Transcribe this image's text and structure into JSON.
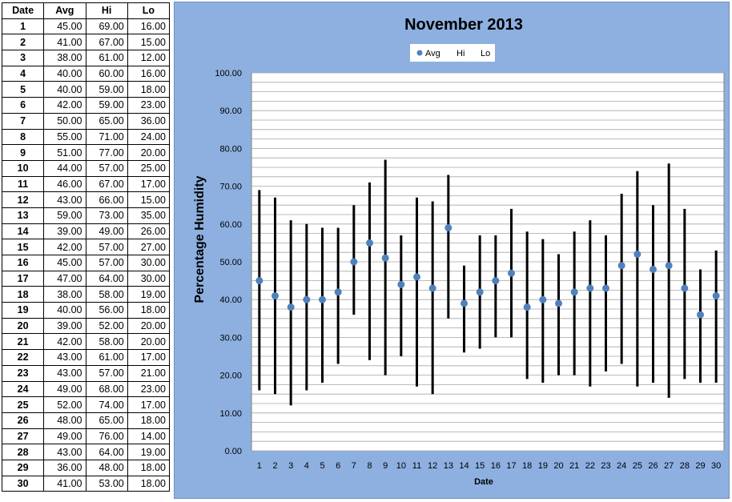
{
  "table": {
    "headers": [
      "Date",
      "Avg",
      "Hi",
      "Lo"
    ],
    "rows": [
      [
        "1",
        "45.00",
        "69.00",
        "16.00"
      ],
      [
        "2",
        "41.00",
        "67.00",
        "15.00"
      ],
      [
        "3",
        "38.00",
        "61.00",
        "12.00"
      ],
      [
        "4",
        "40.00",
        "60.00",
        "16.00"
      ],
      [
        "5",
        "40.00",
        "59.00",
        "18.00"
      ],
      [
        "6",
        "42.00",
        "59.00",
        "23.00"
      ],
      [
        "7",
        "50.00",
        "65.00",
        "36.00"
      ],
      [
        "8",
        "55.00",
        "71.00",
        "24.00"
      ],
      [
        "9",
        "51.00",
        "77.00",
        "20.00"
      ],
      [
        "10",
        "44.00",
        "57.00",
        "25.00"
      ],
      [
        "11",
        "46.00",
        "67.00",
        "17.00"
      ],
      [
        "12",
        "43.00",
        "66.00",
        "15.00"
      ],
      [
        "13",
        "59.00",
        "73.00",
        "35.00"
      ],
      [
        "14",
        "39.00",
        "49.00",
        "26.00"
      ],
      [
        "15",
        "42.00",
        "57.00",
        "27.00"
      ],
      [
        "16",
        "45.00",
        "57.00",
        "30.00"
      ],
      [
        "17",
        "47.00",
        "64.00",
        "30.00"
      ],
      [
        "18",
        "38.00",
        "58.00",
        "19.00"
      ],
      [
        "19",
        "40.00",
        "56.00",
        "18.00"
      ],
      [
        "20",
        "39.00",
        "52.00",
        "20.00"
      ],
      [
        "21",
        "42.00",
        "58.00",
        "20.00"
      ],
      [
        "22",
        "43.00",
        "61.00",
        "17.00"
      ],
      [
        "23",
        "43.00",
        "57.00",
        "21.00"
      ],
      [
        "24",
        "49.00",
        "68.00",
        "23.00"
      ],
      [
        "25",
        "52.00",
        "74.00",
        "17.00"
      ],
      [
        "26",
        "48.00",
        "65.00",
        "18.00"
      ],
      [
        "27",
        "49.00",
        "76.00",
        "14.00"
      ],
      [
        "28",
        "43.00",
        "64.00",
        "19.00"
      ],
      [
        "29",
        "36.00",
        "48.00",
        "18.00"
      ],
      [
        "30",
        "41.00",
        "53.00",
        "18.00"
      ]
    ]
  },
  "chart_data": {
    "type": "scatter",
    "title": "November 2013",
    "xlabel": "Date",
    "ylabel": "Percentage Humidity",
    "legend": {
      "placement": "top-center",
      "entries": [
        "Avg",
        "Hi",
        "Lo"
      ]
    },
    "ylim": [
      0,
      100
    ],
    "y_ticks": [
      "0.00",
      "10.00",
      "20.00",
      "30.00",
      "40.00",
      "50.00",
      "60.00",
      "70.00",
      "80.00",
      "90.00",
      "100.00"
    ],
    "grid": true,
    "categories": [
      "1",
      "2",
      "3",
      "4",
      "5",
      "6",
      "7",
      "8",
      "9",
      "10",
      "11",
      "12",
      "13",
      "14",
      "15",
      "16",
      "17",
      "18",
      "19",
      "20",
      "21",
      "22",
      "23",
      "24",
      "25",
      "26",
      "27",
      "28",
      "29",
      "30"
    ],
    "series": [
      {
        "name": "Avg",
        "values": [
          45,
          41,
          38,
          40,
          40,
          42,
          50,
          55,
          51,
          44,
          46,
          43,
          59,
          39,
          42,
          45,
          47,
          38,
          40,
          39,
          42,
          43,
          43,
          49,
          52,
          48,
          49,
          43,
          36,
          41
        ]
      },
      {
        "name": "Hi",
        "values": [
          69,
          67,
          61,
          60,
          59,
          59,
          65,
          71,
          77,
          57,
          67,
          66,
          73,
          49,
          57,
          57,
          64,
          58,
          56,
          52,
          58,
          61,
          57,
          68,
          74,
          65,
          76,
          64,
          48,
          53
        ]
      },
      {
        "name": "Lo",
        "values": [
          16,
          15,
          12,
          16,
          18,
          23,
          36,
          24,
          20,
          25,
          17,
          15,
          35,
          26,
          27,
          30,
          30,
          19,
          18,
          20,
          20,
          17,
          21,
          23,
          17,
          18,
          14,
          19,
          18,
          18
        ]
      }
    ],
    "colors": {
      "chart_background": "#8db0e0",
      "plot_background": "#ffffff",
      "avg_marker": "#4f81bd",
      "range_bar": "#000000",
      "gridline": "#a6a6a6"
    }
  }
}
